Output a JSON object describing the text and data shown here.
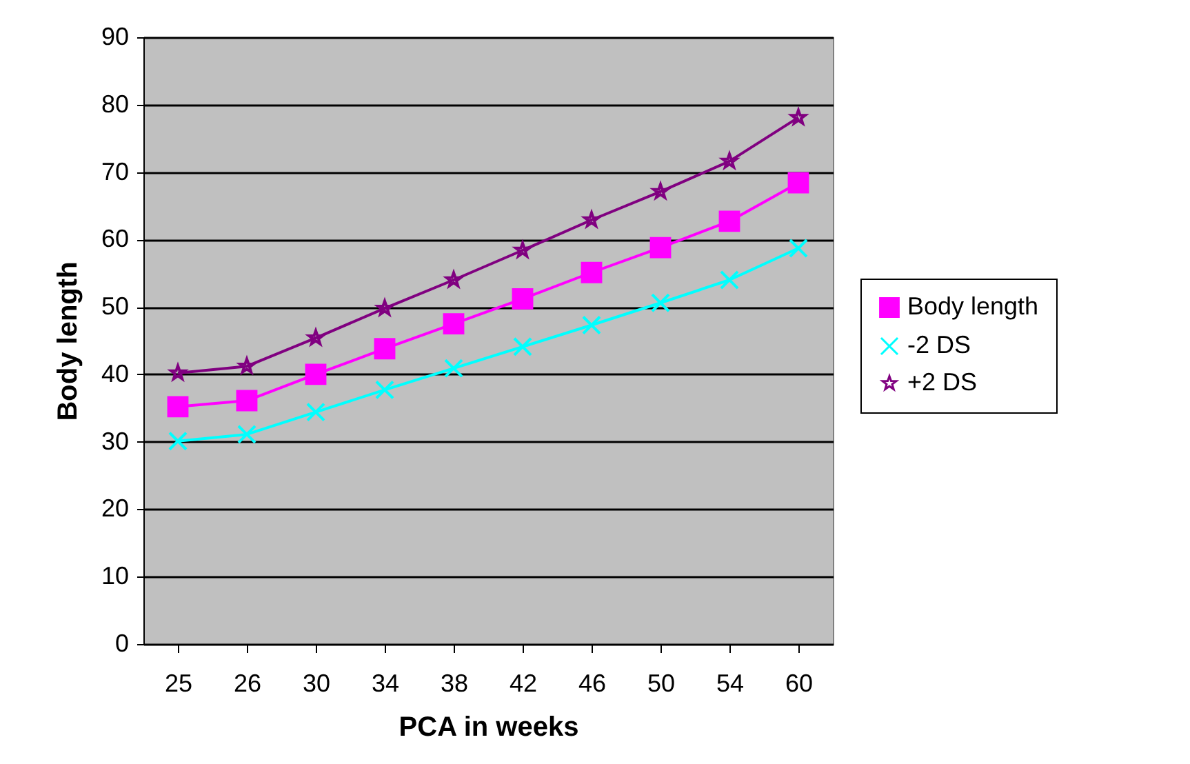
{
  "chart_data": {
    "type": "line",
    "xlabel": "PCA in weeks",
    "ylabel": "Body length",
    "categories": [
      "25",
      "26",
      "30",
      "34",
      "38",
      "42",
      "46",
      "50",
      "54",
      "60"
    ],
    "series": [
      {
        "name": "Body length",
        "color": "#ff00ff",
        "marker": "square",
        "values": [
          35.2,
          36.1,
          40,
          43.8,
          47.5,
          51.2,
          55.1,
          58.8,
          62.7,
          68.4
        ]
      },
      {
        "name": "-2 DS",
        "color": "#00ffff",
        "marker": "cross",
        "values": [
          30.1,
          31.1,
          34.4,
          37.7,
          40.9,
          44.1,
          47.3,
          50.6,
          54,
          58.7
        ]
      },
      {
        "name": "+2 DS",
        "color": "#800080",
        "marker": "star",
        "values": [
          40.2,
          41.2,
          45.4,
          49.8,
          54,
          58.4,
          62.9,
          67.1,
          71.6,
          78.1
        ]
      }
    ],
    "ylim": [
      0,
      90
    ],
    "yticks": [
      0,
      10,
      20,
      30,
      40,
      50,
      60,
      70,
      80,
      90
    ],
    "grid": "y",
    "legend": "right"
  }
}
